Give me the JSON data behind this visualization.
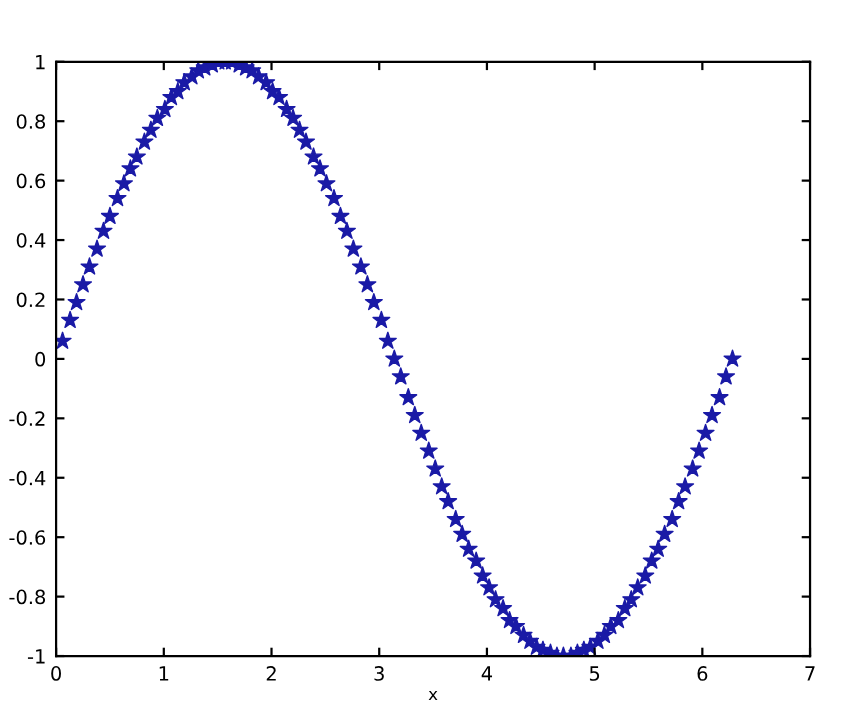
{
  "chart_data": {
    "type": "scatter",
    "xlabel": "x",
    "marker": "star",
    "grid": false,
    "xlim": [
      0,
      7
    ],
    "xticks": [
      0,
      1,
      2,
      3,
      4,
      5,
      6,
      7
    ],
    "ylim": [
      -1,
      1
    ],
    "yticks": [
      -1,
      -0.8,
      -0.6,
      -0.4,
      -0.2,
      0,
      0.2,
      0.4,
      0.6,
      0.8,
      1
    ],
    "series": [
      {
        "color": "#1a1aa6",
        "x": [
          0.06,
          0.13,
          0.19,
          0.25,
          0.31,
          0.38,
          0.44,
          0.5,
          0.57,
          0.63,
          0.69,
          0.75,
          0.82,
          0.88,
          0.94,
          1.01,
          1.07,
          1.13,
          1.19,
          1.26,
          1.32,
          1.38,
          1.45,
          1.51,
          1.57,
          1.63,
          1.7,
          1.76,
          1.82,
          1.88,
          1.95,
          2.01,
          2.07,
          2.14,
          2.2,
          2.26,
          2.32,
          2.39,
          2.45,
          2.51,
          2.58,
          2.64,
          2.7,
          2.76,
          2.83,
          2.89,
          2.95,
          3.02,
          3.08,
          3.14,
          3.2,
          3.27,
          3.33,
          3.39,
          3.46,
          3.52,
          3.58,
          3.64,
          3.71,
          3.77,
          3.83,
          3.9,
          3.96,
          4.02,
          4.08,
          4.15,
          4.21,
          4.27,
          4.34,
          4.4,
          4.46,
          4.52,
          4.59,
          4.65,
          4.71,
          4.78,
          4.84,
          4.9,
          4.96,
          5.03,
          5.09,
          5.15,
          5.22,
          5.28,
          5.34,
          5.4,
          5.47,
          5.53,
          5.59,
          5.65,
          5.72,
          5.78,
          5.84,
          5.91,
          5.97,
          6.03,
          6.09,
          6.16,
          6.22,
          6.28
        ],
        "values": [
          0.06,
          0.13,
          0.19,
          0.25,
          0.31,
          0.37,
          0.43,
          0.48,
          0.54,
          0.59,
          0.64,
          0.68,
          0.73,
          0.77,
          0.81,
          0.84,
          0.88,
          0.9,
          0.93,
          0.95,
          0.97,
          0.98,
          0.99,
          1.0,
          1.0,
          1.0,
          0.99,
          0.98,
          0.97,
          0.95,
          0.93,
          0.9,
          0.88,
          0.84,
          0.81,
          0.77,
          0.73,
          0.68,
          0.64,
          0.59,
          0.54,
          0.48,
          0.43,
          0.37,
          0.31,
          0.25,
          0.19,
          0.13,
          0.06,
          0.0,
          -0.06,
          -0.13,
          -0.19,
          -0.25,
          -0.31,
          -0.37,
          -0.43,
          -0.48,
          -0.54,
          -0.59,
          -0.64,
          -0.68,
          -0.73,
          -0.77,
          -0.81,
          -0.84,
          -0.88,
          -0.9,
          -0.93,
          -0.95,
          -0.97,
          -0.98,
          -0.99,
          -1.0,
          -1.0,
          -1.0,
          -0.99,
          -0.98,
          -0.97,
          -0.95,
          -0.93,
          -0.9,
          -0.88,
          -0.84,
          -0.81,
          -0.77,
          -0.73,
          -0.68,
          -0.64,
          -0.59,
          -0.54,
          -0.48,
          -0.43,
          -0.37,
          -0.31,
          -0.25,
          -0.19,
          -0.13,
          -0.06,
          0.0
        ]
      }
    ]
  }
}
